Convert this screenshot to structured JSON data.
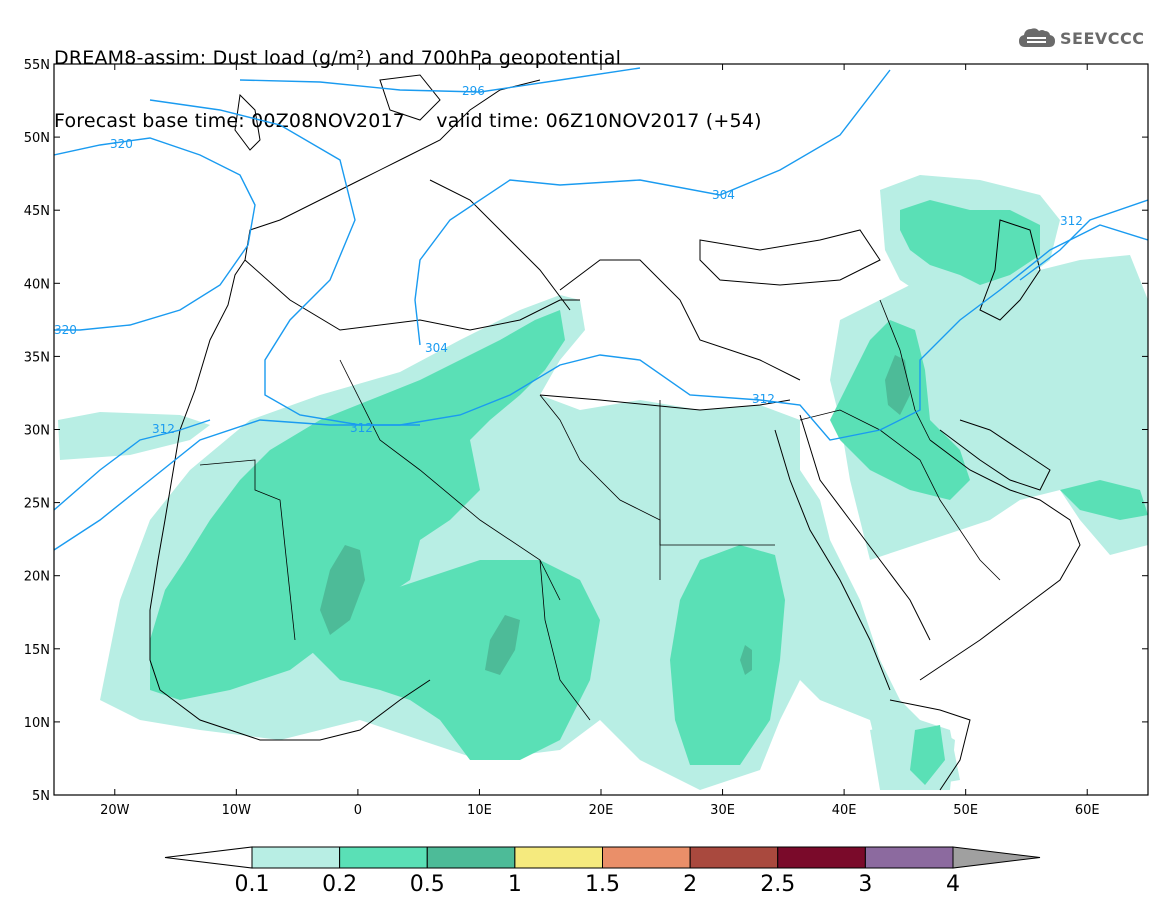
{
  "title": {
    "line1": "DREAM8-assim: Dust load (g/m²) and 700hPa geopotential",
    "line2_base": "Forecast base time: 00Z08NOV2017",
    "line2_valid": "valid time: 06Z10NOV2017 (+54)"
  },
  "logo": {
    "text": "SEEVCCC",
    "icon": "cloud-icon"
  },
  "map": {
    "lat_labels": [
      "55N",
      "50N",
      "45N",
      "40N",
      "35N",
      "30N",
      "25N",
      "20N",
      "15N",
      "10N",
      "5N"
    ],
    "lon_labels": [
      "20W",
      "10W",
      "0",
      "10E",
      "20E",
      "30E",
      "40E",
      "50E",
      "60E"
    ],
    "contour_labels": [
      "296",
      "320",
      "304",
      "312",
      "320",
      "312",
      "304",
      "312",
      "312"
    ]
  },
  "colorbar": {
    "tick_labels": [
      "0.1",
      "0.2",
      "0.5",
      "1",
      "1.5",
      "2",
      "2.5",
      "3",
      "4"
    ],
    "colors": [
      "#ffffff",
      "#b8eee4",
      "#5ae0b6",
      "#4dbb98",
      "#f5ea7e",
      "#ea8f69",
      "#a9493e",
      "#7a0a2a",
      "#8c6a9f",
      "#a0a0a0"
    ]
  }
}
